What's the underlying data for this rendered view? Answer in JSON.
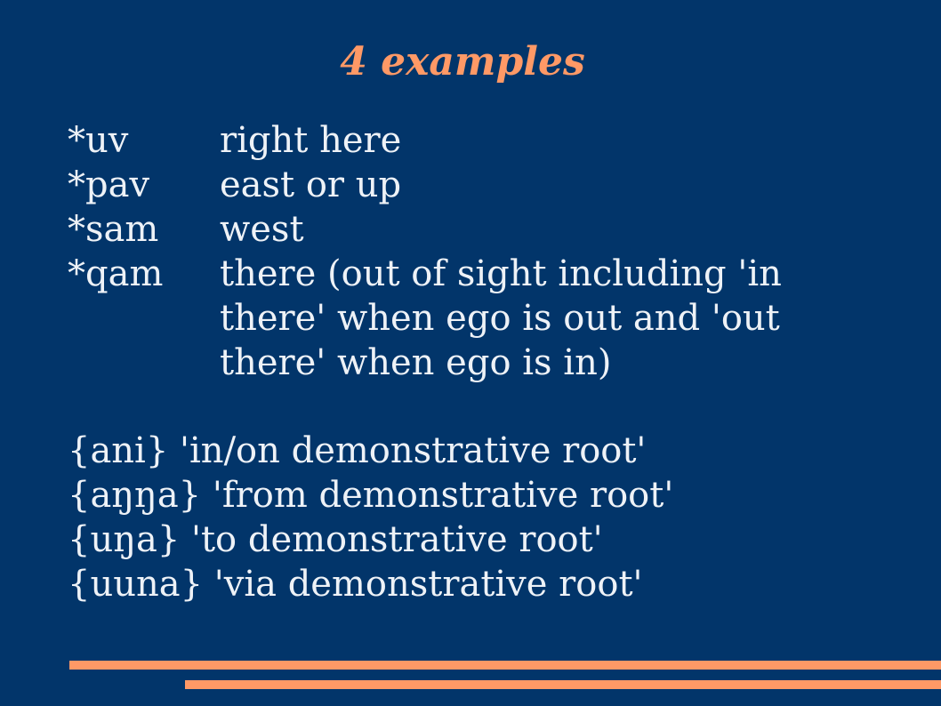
{
  "slide": {
    "title": "4 examples",
    "accent_color": "#ff9966",
    "background_color": "#02356a",
    "text_color": "#eef2f7"
  },
  "examples": [
    {
      "term": "*uv",
      "gloss": "right here"
    },
    {
      "term": "*pav",
      "gloss": "east or up"
    },
    {
      "term": "*sam",
      "gloss": "west"
    },
    {
      "term": "*qam",
      "gloss": "there (out of sight including 'in there' when ego is out and 'out there' when ego is in)"
    }
  ],
  "morphemes": [
    "{ani} 'in/on demonstrative root'",
    "{aŋŋa} 'from demonstrative root'",
    "{uŋa} 'to demonstrative root'",
    "{uuna} 'via demonstrative root'"
  ]
}
